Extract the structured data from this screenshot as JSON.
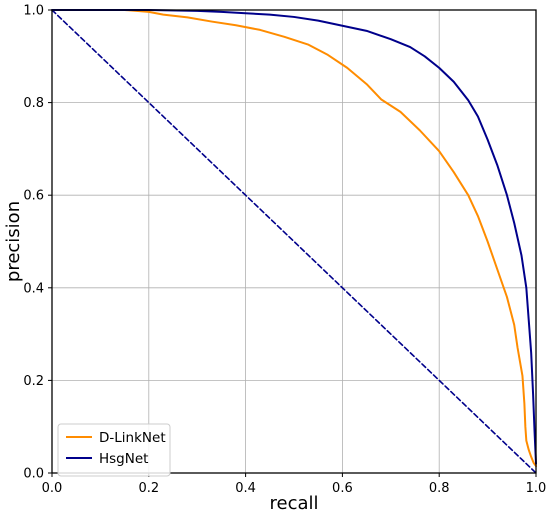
{
  "chart_data": {
    "type": "line",
    "xlabel": "recall",
    "ylabel": "precision",
    "xlim": [
      0.0,
      1.0
    ],
    "ylim": [
      0.0,
      1.0
    ],
    "xticks": [
      "0.0",
      "0.2",
      "0.4",
      "0.6",
      "0.8",
      "1.0"
    ],
    "yticks": [
      "0.0",
      "0.2",
      "0.4",
      "0.6",
      "0.8",
      "1.0"
    ],
    "grid": true,
    "legend_position": "lower-left",
    "series": [
      {
        "name": "D-LinkNet",
        "color": "#ff8c00",
        "style": "solid",
        "points": [
          [
            0.0,
            1.0
          ],
          [
            0.1,
            1.0
          ],
          [
            0.15,
            1.0
          ],
          [
            0.2,
            0.996
          ],
          [
            0.23,
            0.99
          ],
          [
            0.28,
            0.984
          ],
          [
            0.33,
            0.975
          ],
          [
            0.38,
            0.967
          ],
          [
            0.43,
            0.957
          ],
          [
            0.48,
            0.942
          ],
          [
            0.53,
            0.925
          ],
          [
            0.57,
            0.903
          ],
          [
            0.61,
            0.875
          ],
          [
            0.65,
            0.84
          ],
          [
            0.68,
            0.807
          ],
          [
            0.72,
            0.78
          ],
          [
            0.76,
            0.74
          ],
          [
            0.8,
            0.695
          ],
          [
            0.83,
            0.65
          ],
          [
            0.86,
            0.6
          ],
          [
            0.88,
            0.555
          ],
          [
            0.9,
            0.5
          ],
          [
            0.92,
            0.44
          ],
          [
            0.94,
            0.38
          ],
          [
            0.955,
            0.32
          ],
          [
            0.962,
            0.27
          ],
          [
            0.972,
            0.21
          ],
          [
            0.976,
            0.15
          ],
          [
            0.978,
            0.1
          ],
          [
            0.98,
            0.07
          ],
          [
            0.985,
            0.05
          ],
          [
            0.99,
            0.035
          ],
          [
            0.995,
            0.022
          ],
          [
            1.0,
            0.015
          ]
        ]
      },
      {
        "name": "HsgNet",
        "color": "#00008b",
        "style": "solid",
        "points": [
          [
            0.0,
            1.0
          ],
          [
            0.1,
            1.0
          ],
          [
            0.2,
            1.0
          ],
          [
            0.3,
            0.998
          ],
          [
            0.35,
            0.996
          ],
          [
            0.4,
            0.993
          ],
          [
            0.45,
            0.99
          ],
          [
            0.5,
            0.985
          ],
          [
            0.55,
            0.977
          ],
          [
            0.6,
            0.966
          ],
          [
            0.65,
            0.955
          ],
          [
            0.7,
            0.937
          ],
          [
            0.74,
            0.92
          ],
          [
            0.77,
            0.9
          ],
          [
            0.8,
            0.875
          ],
          [
            0.83,
            0.845
          ],
          [
            0.86,
            0.805
          ],
          [
            0.88,
            0.77
          ],
          [
            0.9,
            0.72
          ],
          [
            0.92,
            0.665
          ],
          [
            0.94,
            0.6
          ],
          [
            0.955,
            0.54
          ],
          [
            0.97,
            0.47
          ],
          [
            0.98,
            0.4
          ],
          [
            0.985,
            0.33
          ],
          [
            0.99,
            0.26
          ],
          [
            0.994,
            0.17
          ],
          [
            0.997,
            0.09
          ],
          [
            1.0,
            0.02
          ]
        ]
      },
      {
        "name": "",
        "color": "#00008b",
        "style": "dashed",
        "points": [
          [
            0.0,
            1.0
          ],
          [
            1.0,
            0.0
          ]
        ]
      }
    ]
  }
}
